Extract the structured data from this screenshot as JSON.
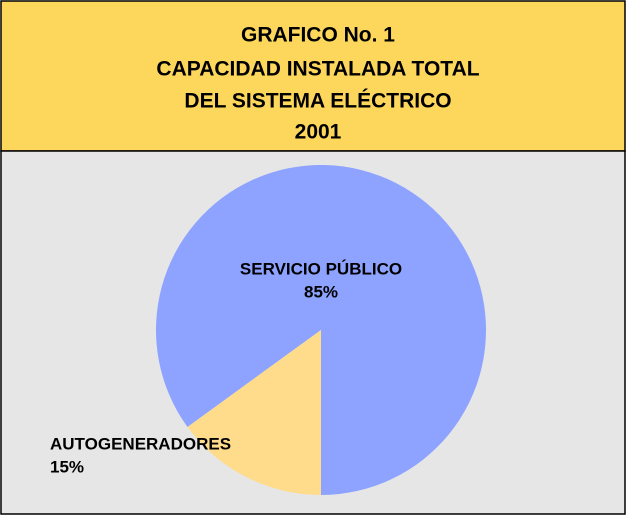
{
  "chart_data": {
    "type": "pie",
    "title": [
      "GRAFICO No. 1",
      "CAPACIDAD INSTALADA TOTAL",
      "DEL SISTEMA ELÉCTRICO",
      "2001"
    ],
    "categories": [
      "SERVICIO PÚBLICO",
      "AUTOGENERADORES"
    ],
    "values": [
      85,
      15
    ],
    "value_labels": [
      "85%",
      "15%"
    ],
    "colors": [
      "#8da3ff",
      "#ffdc8c"
    ]
  }
}
